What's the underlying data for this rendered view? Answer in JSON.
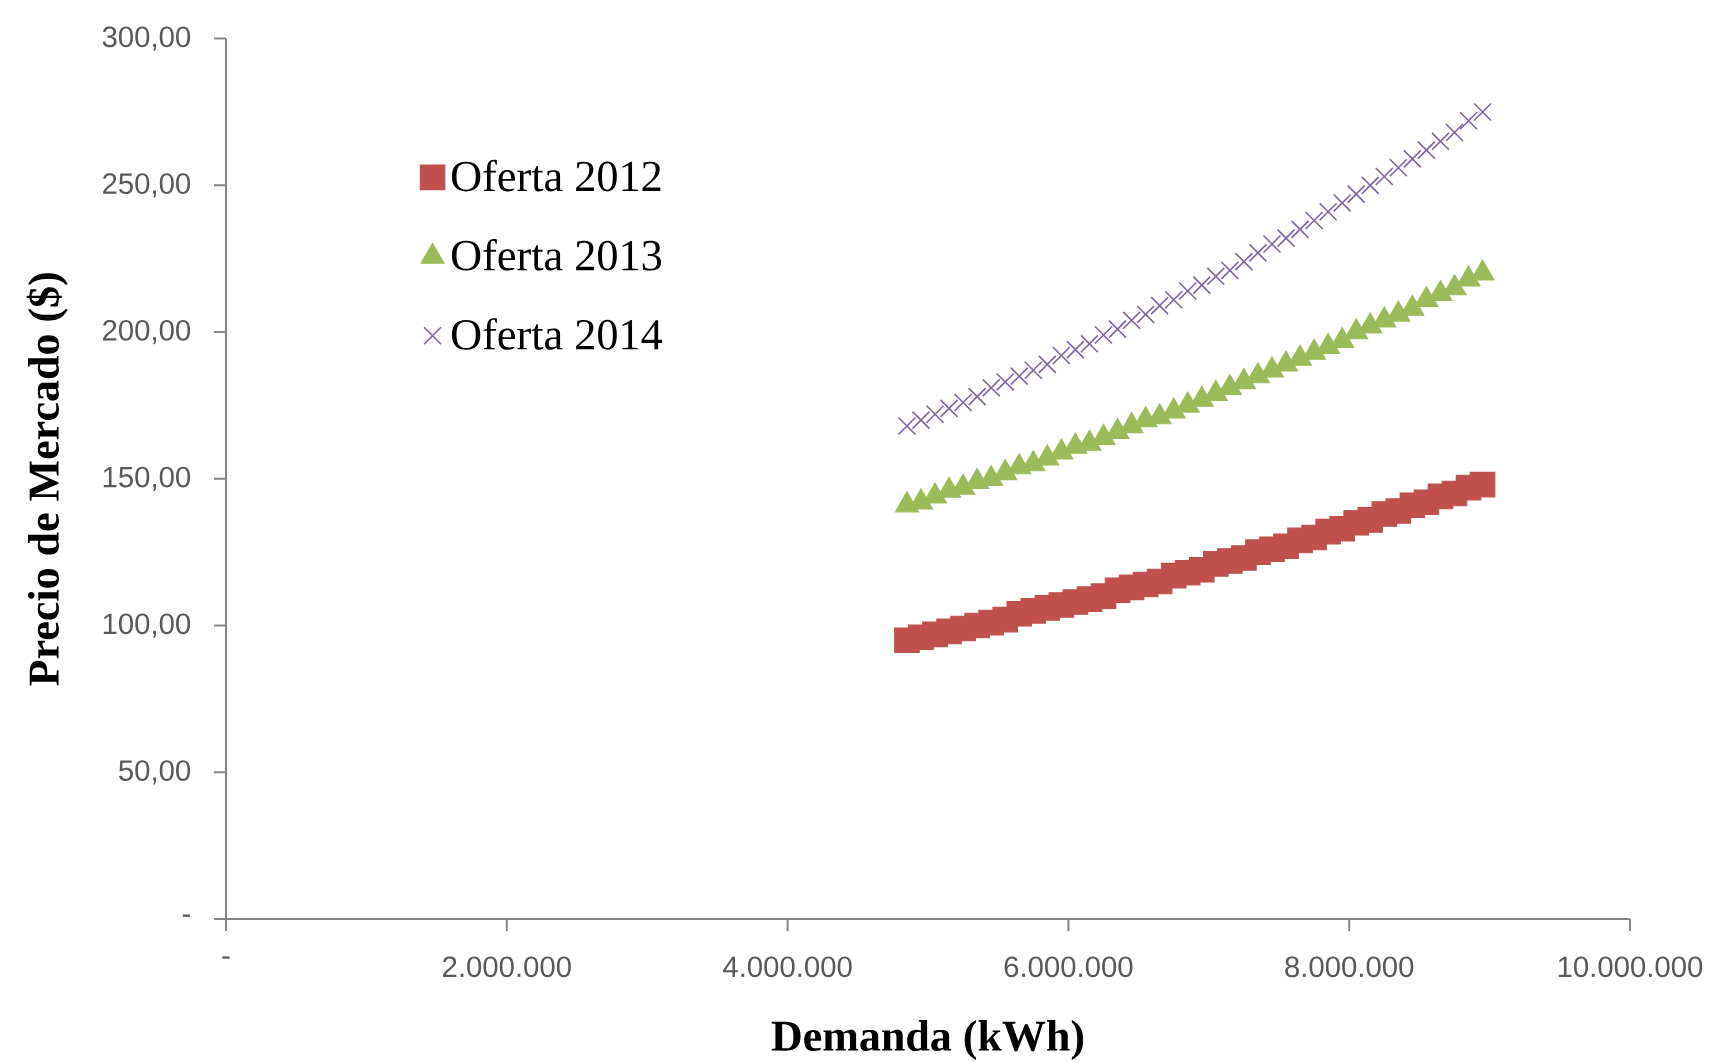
{
  "chart_data": {
    "type": "scatter",
    "xlabel": "Demanda (kWh)",
    "ylabel": "Precio de Mercado ($)",
    "x": [
      4850000,
      4950000,
      5050000,
      5150000,
      5250000,
      5350000,
      5450000,
      5550000,
      5650000,
      5750000,
      5850000,
      5950000,
      6050000,
      6150000,
      6250000,
      6350000,
      6450000,
      6550000,
      6650000,
      6750000,
      6850000,
      6950000,
      7050000,
      7150000,
      7250000,
      7350000,
      7450000,
      7550000,
      7650000,
      7750000,
      7850000,
      7950000,
      8050000,
      8150000,
      8250000,
      8350000,
      8450000,
      8550000,
      8650000,
      8750000,
      8850000,
      8950000
    ],
    "series": [
      {
        "name": "Oferta 2012",
        "color": "#c0504d",
        "marker": "square",
        "values": [
          95,
          96,
          97,
          98,
          99,
          100,
          101,
          102,
          104,
          105,
          106,
          107,
          108,
          109,
          110,
          112,
          113,
          114,
          115,
          117,
          118,
          119,
          121,
          122,
          123,
          125,
          126,
          127,
          129,
          130,
          132,
          133,
          135,
          136,
          138,
          139,
          141,
          142,
          144,
          145,
          147,
          148
        ]
      },
      {
        "name": "Oferta 2013",
        "color": "#9bbb59",
        "marker": "triangle",
        "values": [
          141,
          142,
          144,
          146,
          147,
          149,
          150,
          152,
          154,
          155,
          157,
          159,
          161,
          162,
          164,
          166,
          168,
          170,
          171,
          173,
          175,
          177,
          179,
          181,
          183,
          185,
          187,
          189,
          191,
          193,
          195,
          197,
          200,
          202,
          204,
          206,
          208,
          211,
          213,
          215,
          218,
          220
        ]
      },
      {
        "name": "Oferta 2014",
        "color": "#8064a2",
        "marker": "cross",
        "values": [
          168,
          170,
          172,
          174,
          176,
          178,
          181,
          183,
          185,
          187,
          189,
          192,
          194,
          196,
          199,
          201,
          204,
          206,
          209,
          211,
          214,
          216,
          219,
          221,
          224,
          227,
          230,
          232,
          235,
          238,
          241,
          244,
          247,
          250,
          253,
          256,
          259,
          262,
          265,
          268,
          272,
          275
        ]
      }
    ],
    "xlim": [
      0,
      10000000
    ],
    "xticks": [
      {
        "value": 0,
        "label": "-"
      },
      {
        "value": 2000000,
        "label": "2.000.000"
      },
      {
        "value": 4000000,
        "label": "4.000.000"
      },
      {
        "value": 6000000,
        "label": "6.000.000"
      },
      {
        "value": 8000000,
        "label": "8.000.000"
      },
      {
        "value": 10000000,
        "label": "10.000.000"
      }
    ],
    "ylim": [
      0,
      300
    ],
    "yticks": [
      {
        "value": 0,
        "label": "-"
      },
      {
        "value": 50,
        "label": "50,00"
      },
      {
        "value": 100,
        "label": "100,00"
      },
      {
        "value": 150,
        "label": "150,00"
      },
      {
        "value": 200,
        "label": "200,00"
      },
      {
        "value": 250,
        "label": "250,00"
      },
      {
        "value": 300,
        "label": "300,00"
      }
    ],
    "legend": "top left"
  }
}
